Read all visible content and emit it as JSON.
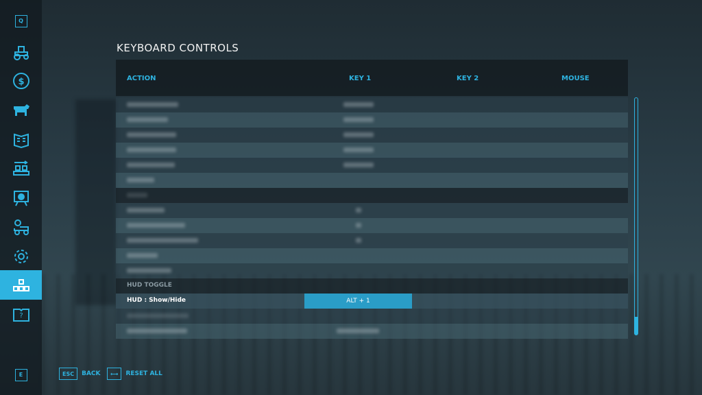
{
  "sidebar": {
    "top_key": "Q",
    "bottom_key": "E",
    "items": [
      {
        "icon": "tractor-icon"
      },
      {
        "icon": "dollar-icon"
      },
      {
        "icon": "cow-icon"
      },
      {
        "icon": "contracts-icon"
      },
      {
        "icon": "production-icon"
      },
      {
        "icon": "tutorial-icon"
      },
      {
        "icon": "vehicle-settings-icon"
      },
      {
        "icon": "gear-icon"
      },
      {
        "icon": "controls-icon",
        "selected": true
      },
      {
        "icon": "help-icon"
      }
    ]
  },
  "page": {
    "title": "KEYBOARD CONTROLS"
  },
  "table": {
    "columns": [
      "ACTION",
      "KEY 1",
      "KEY 2",
      "MOUSE"
    ],
    "section": "HUD TOGGLE",
    "selected_row": {
      "action": "HUD : Show/Hide",
      "key1": "ALT + 1"
    }
  },
  "footer": {
    "back_key": "ESC",
    "back_label": "BACK",
    "reset_label": "RESET ALL"
  },
  "colors": {
    "accent": "#2eb3e0",
    "selected_cell": "#2a9dc7"
  }
}
